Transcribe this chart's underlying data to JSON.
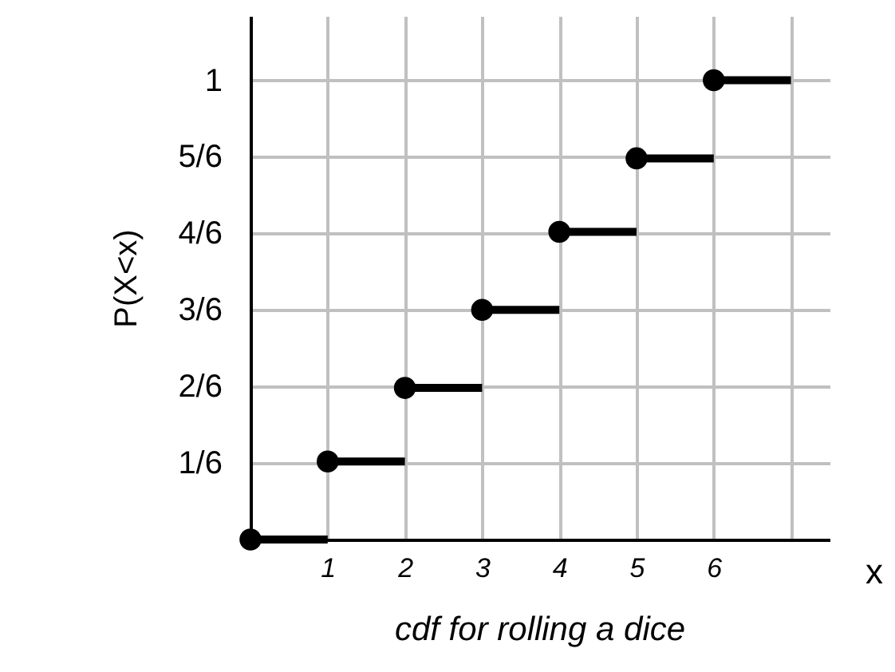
{
  "chart_data": {
    "type": "scatter",
    "title": "cdf for rolling a dice",
    "xlabel": "x",
    "ylabel": "P(X<x)",
    "series": [
      {
        "type": "line",
        "color": "#000000",
        "x": [
          0,
          1
        ],
        "values": [
          0,
          0
        ]
      },
      {
        "type": "line",
        "color": "#000000",
        "x": [
          1,
          2
        ],
        "values": [
          0.17,
          0.17
        ]
      },
      {
        "type": "line",
        "color": "#000000",
        "x": [
          2,
          3
        ],
        "values": [
          0.33,
          0.33
        ]
      },
      {
        "type": "line",
        "color": "#000000",
        "x": [
          3,
          4
        ],
        "values": [
          0.5,
          0.5
        ]
      },
      {
        "type": "line",
        "color": "#000000",
        "x": [
          4,
          5
        ],
        "values": [
          0.67,
          0.67
        ]
      },
      {
        "type": "line",
        "color": "#000000",
        "x": [
          5,
          6
        ],
        "values": [
          0.83,
          0.83
        ]
      },
      {
        "type": "line",
        "color": "#000000",
        "x": [
          6,
          7
        ],
        "values": [
          1,
          1
        ]
      },
      {
        "marker": "circle",
        "color": "#000000",
        "x": [
          0,
          1,
          2,
          3,
          4,
          5,
          6
        ],
        "values": [
          0,
          0.17,
          0.33,
          0.5,
          0.67,
          0.83,
          1
        ]
      }
    ],
    "xlim": [
      0,
      7.5
    ],
    "ylim": [
      0,
      1.14
    ],
    "xticks": [
      1,
      2,
      3,
      4,
      5,
      6,
      {
        "value": 7,
        "label": null
      }
    ],
    "yticks": [
      {
        "value": 0.1667,
        "label": "1/6"
      },
      {
        "value": 0.3333,
        "label": "2/6"
      },
      {
        "value": 0.5,
        "label": "3/6"
      },
      {
        "value": 0.6667,
        "label": "4/6"
      },
      {
        "value": 0.8333,
        "label": "5/6"
      },
      1
    ],
    "grid": true,
    "line_style": "solid"
  }
}
